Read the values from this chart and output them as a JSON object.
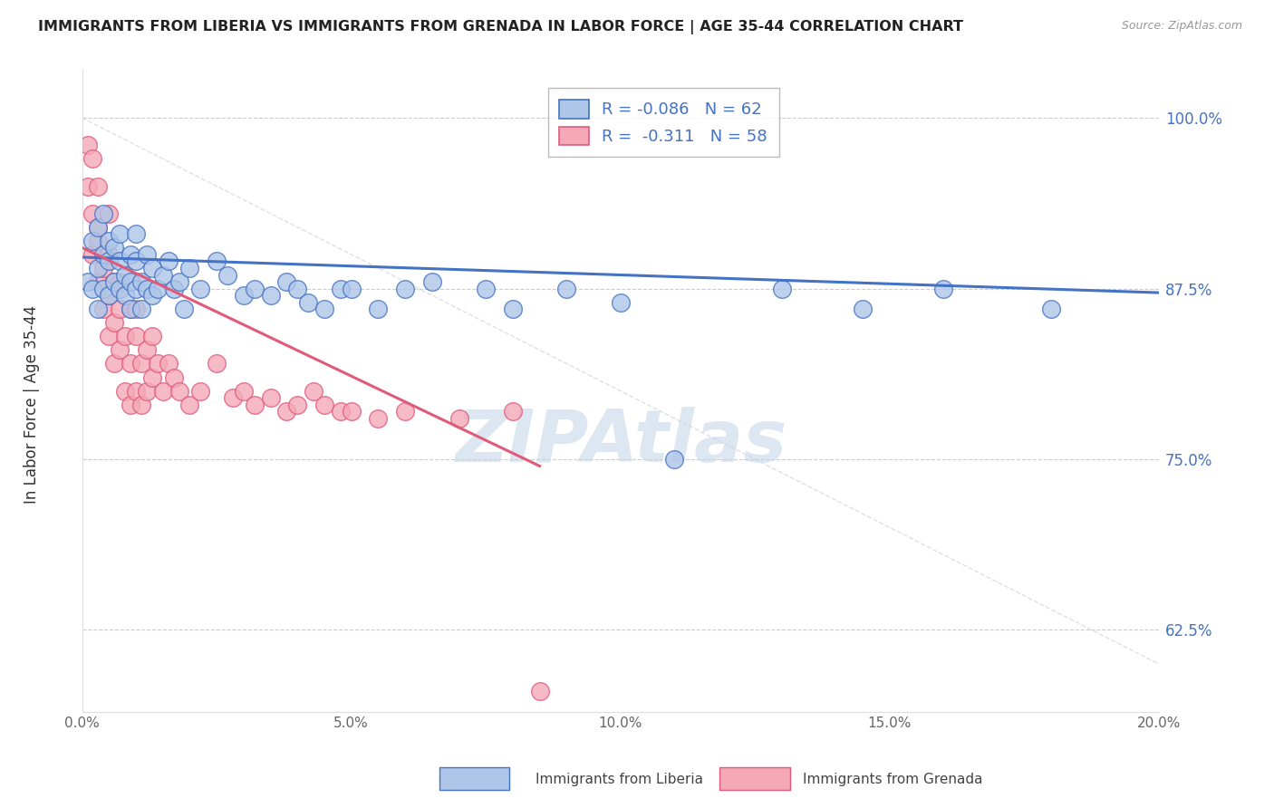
{
  "title": "IMMIGRANTS FROM LIBERIA VS IMMIGRANTS FROM GRENADA IN LABOR FORCE | AGE 35-44 CORRELATION CHART",
  "source": "Source: ZipAtlas.com",
  "ylabel": "In Labor Force | Age 35-44",
  "xlim": [
    0.0,
    0.2
  ],
  "ylim": [
    0.565,
    1.035
  ],
  "xticks": [
    0.0,
    0.05,
    0.1,
    0.15,
    0.2
  ],
  "xticklabels": [
    "0.0%",
    "5.0%",
    "10.0%",
    "15.0%",
    "20.0%"
  ],
  "yticks": [
    0.625,
    0.75,
    0.875,
    1.0
  ],
  "yticklabels": [
    "62.5%",
    "75.0%",
    "87.5%",
    "100.0%"
  ],
  "liberia_R": -0.086,
  "liberia_N": 62,
  "grenada_R": -0.311,
  "grenada_N": 58,
  "liberia_color": "#aec6e8",
  "grenada_color": "#f4a8b8",
  "liberia_line_color": "#4472c4",
  "grenada_line_color": "#e05a7a",
  "watermark": "ZIPAtlas",
  "watermark_color": "#c0d4e8",
  "background_color": "#ffffff",
  "grid_color": "#cccccc",
  "liberia_x": [
    0.001,
    0.002,
    0.002,
    0.003,
    0.003,
    0.003,
    0.004,
    0.004,
    0.004,
    0.005,
    0.005,
    0.005,
    0.006,
    0.006,
    0.007,
    0.007,
    0.007,
    0.008,
    0.008,
    0.009,
    0.009,
    0.009,
    0.01,
    0.01,
    0.01,
    0.011,
    0.011,
    0.012,
    0.012,
    0.013,
    0.013,
    0.014,
    0.015,
    0.016,
    0.017,
    0.018,
    0.019,
    0.02,
    0.022,
    0.025,
    0.027,
    0.03,
    0.032,
    0.035,
    0.038,
    0.04,
    0.042,
    0.045,
    0.048,
    0.05,
    0.055,
    0.06,
    0.065,
    0.075,
    0.08,
    0.09,
    0.1,
    0.11,
    0.13,
    0.145,
    0.16,
    0.18
  ],
  "liberia_y": [
    0.88,
    0.91,
    0.875,
    0.89,
    0.92,
    0.86,
    0.875,
    0.9,
    0.93,
    0.895,
    0.87,
    0.91,
    0.88,
    0.905,
    0.875,
    0.895,
    0.915,
    0.87,
    0.885,
    0.88,
    0.9,
    0.86,
    0.875,
    0.895,
    0.915,
    0.88,
    0.86,
    0.875,
    0.9,
    0.87,
    0.89,
    0.875,
    0.885,
    0.895,
    0.875,
    0.88,
    0.86,
    0.89,
    0.875,
    0.895,
    0.885,
    0.87,
    0.875,
    0.87,
    0.88,
    0.875,
    0.865,
    0.86,
    0.875,
    0.875,
    0.86,
    0.875,
    0.88,
    0.875,
    0.86,
    0.875,
    0.865,
    0.75,
    0.875,
    0.86,
    0.875,
    0.86
  ],
  "grenada_x": [
    0.001,
    0.001,
    0.002,
    0.002,
    0.002,
    0.003,
    0.003,
    0.003,
    0.003,
    0.004,
    0.004,
    0.005,
    0.005,
    0.005,
    0.005,
    0.006,
    0.006,
    0.006,
    0.007,
    0.007,
    0.007,
    0.008,
    0.008,
    0.009,
    0.009,
    0.009,
    0.01,
    0.01,
    0.01,
    0.011,
    0.011,
    0.012,
    0.012,
    0.013,
    0.013,
    0.014,
    0.015,
    0.016,
    0.017,
    0.018,
    0.02,
    0.022,
    0.025,
    0.028,
    0.03,
    0.032,
    0.035,
    0.038,
    0.04,
    0.043,
    0.045,
    0.048,
    0.05,
    0.055,
    0.06,
    0.07,
    0.08,
    0.085
  ],
  "grenada_y": [
    0.98,
    0.95,
    0.97,
    0.93,
    0.9,
    0.95,
    0.91,
    0.88,
    0.92,
    0.89,
    0.86,
    0.9,
    0.87,
    0.84,
    0.93,
    0.88,
    0.85,
    0.82,
    0.86,
    0.83,
    0.88,
    0.84,
    0.8,
    0.86,
    0.82,
    0.79,
    0.84,
    0.8,
    0.86,
    0.82,
    0.79,
    0.83,
    0.8,
    0.84,
    0.81,
    0.82,
    0.8,
    0.82,
    0.81,
    0.8,
    0.79,
    0.8,
    0.82,
    0.795,
    0.8,
    0.79,
    0.795,
    0.785,
    0.79,
    0.8,
    0.79,
    0.785,
    0.785,
    0.78,
    0.785,
    0.78,
    0.785,
    0.58
  ],
  "liberia_trend_x": [
    0.0,
    0.2
  ],
  "liberia_trend_y": [
    0.898,
    0.872
  ],
  "grenada_trend_x": [
    0.0,
    0.085
  ],
  "grenada_trend_y": [
    0.905,
    0.745
  ]
}
